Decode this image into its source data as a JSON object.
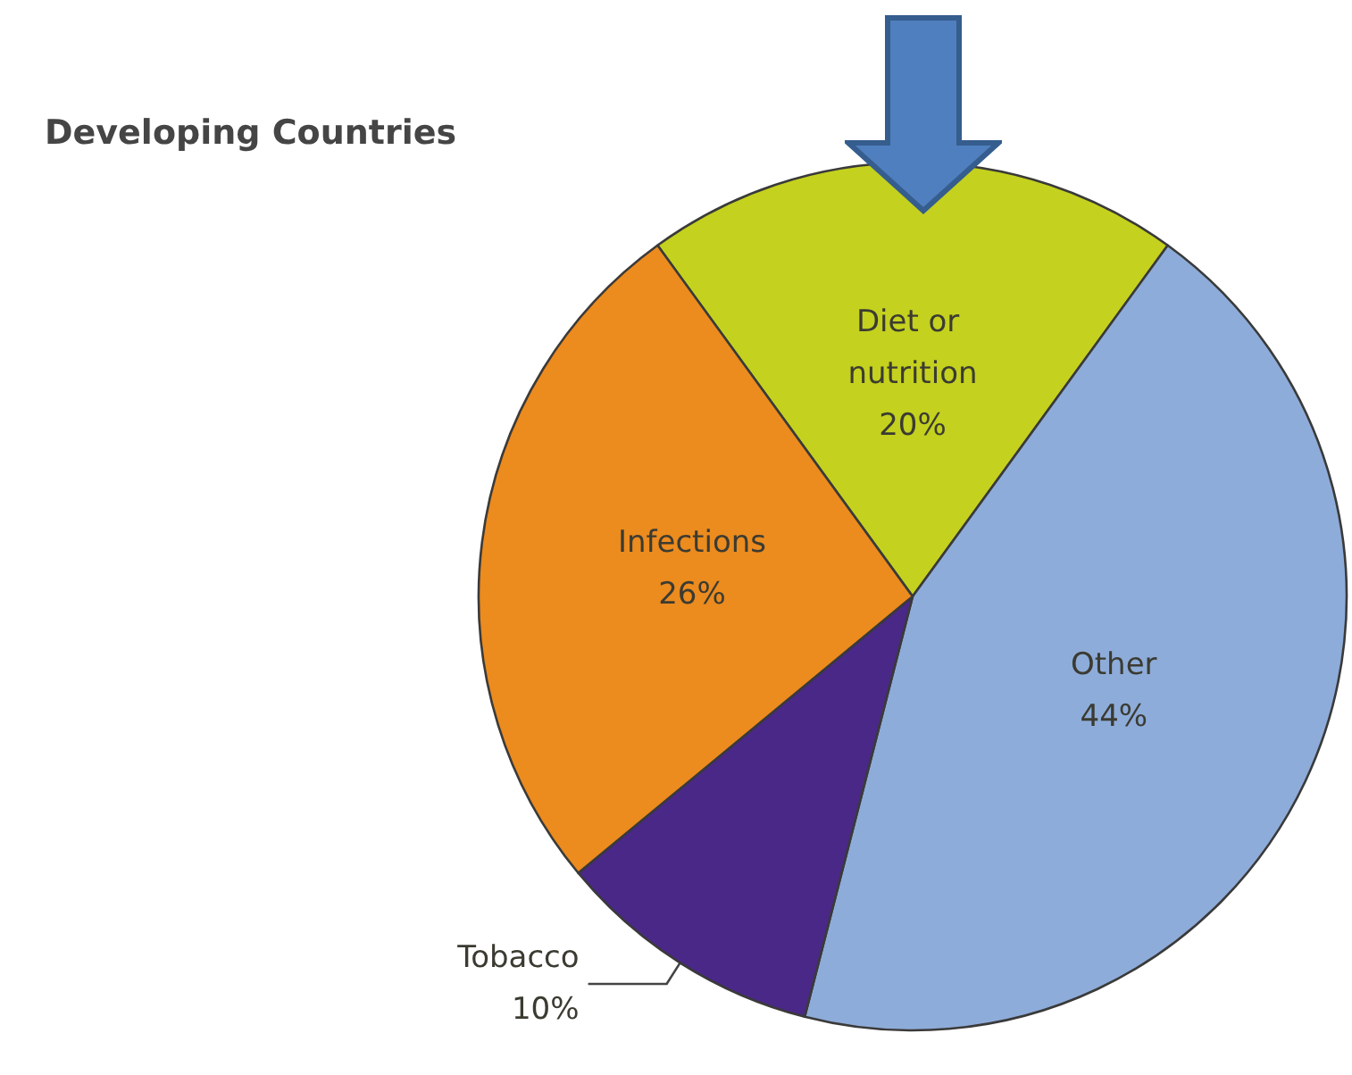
{
  "chart_data": {
    "type": "pie",
    "title": "Developing Countries",
    "categories": [
      "Diet or nutrition",
      "Other",
      "Tobacco",
      "Infections"
    ],
    "values": [
      20,
      44,
      10,
      26
    ],
    "value_labels": [
      "20%",
      "44%",
      "10%",
      "26%"
    ],
    "colors": [
      "#c4d11e",
      "#8eacd9",
      "#4a2888",
      "#ec8b1e"
    ],
    "legend": false
  }
}
